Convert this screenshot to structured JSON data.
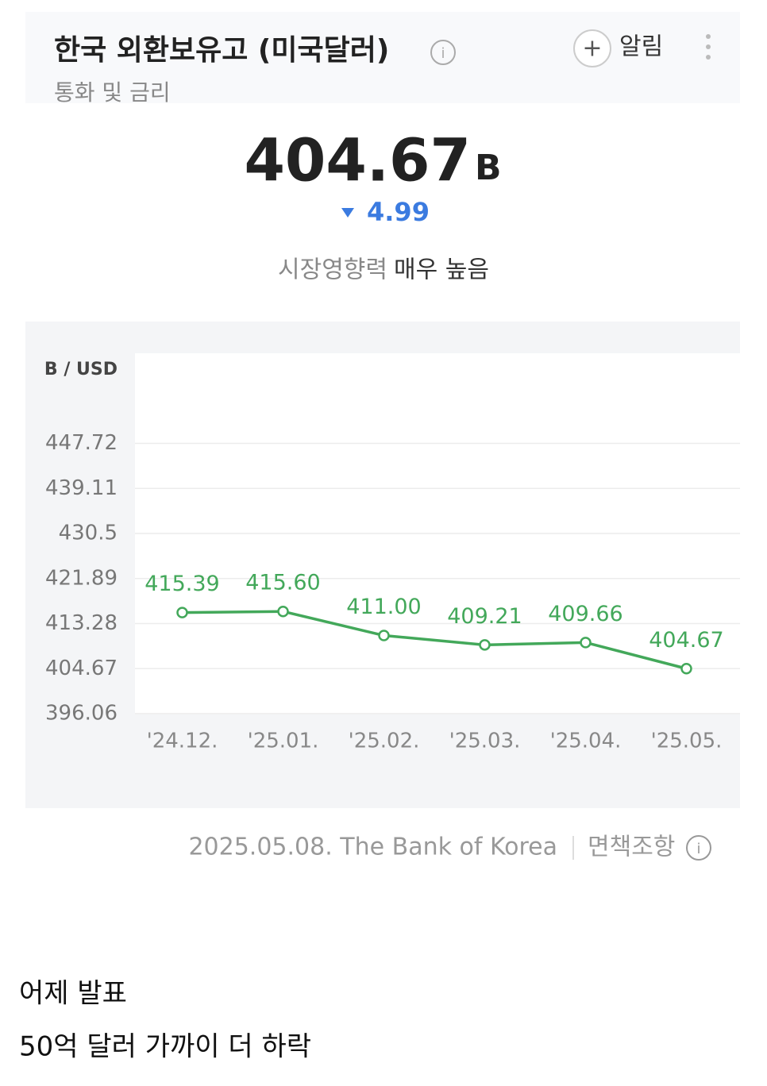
{
  "header": {
    "title": "한국 외환보유고 (미국달러)",
    "subtitle": "통화 및 금리",
    "alert": "알림",
    "price": "404.67",
    "unit": "B",
    "change": "4.99",
    "impact_label": "시장영향력",
    "impact_value": "매우 높음"
  },
  "chart_data": {
    "type": "line",
    "y_label": "B / USD",
    "categories": [
      "'24.12.",
      "'25.01.",
      "'25.02.",
      "'25.03.",
      "'25.04.",
      "'25.05."
    ],
    "series": [
      {
        "name": "외환보유고",
        "color": "#43a85a",
        "values": [
          415.39,
          415.6,
          411.0,
          409.21,
          409.66,
          404.67
        ],
        "value_labels": [
          "415.39",
          "415.60",
          "411.00",
          "409.21",
          "409.66",
          "404.67"
        ]
      }
    ],
    "ylim": [
      396.06,
      464.94
    ],
    "yticks": [
      396.06,
      404.67,
      413.28,
      421.89,
      430.5,
      439.11,
      447.72
    ],
    "grid": true
  },
  "footer": {
    "source": "2025.05.08. The Bank of Korea",
    "disclaimer": "면책조항"
  },
  "post": {
    "lines": [
      "어제 발표",
      "50억 달러 가까이 더 하락"
    ]
  }
}
